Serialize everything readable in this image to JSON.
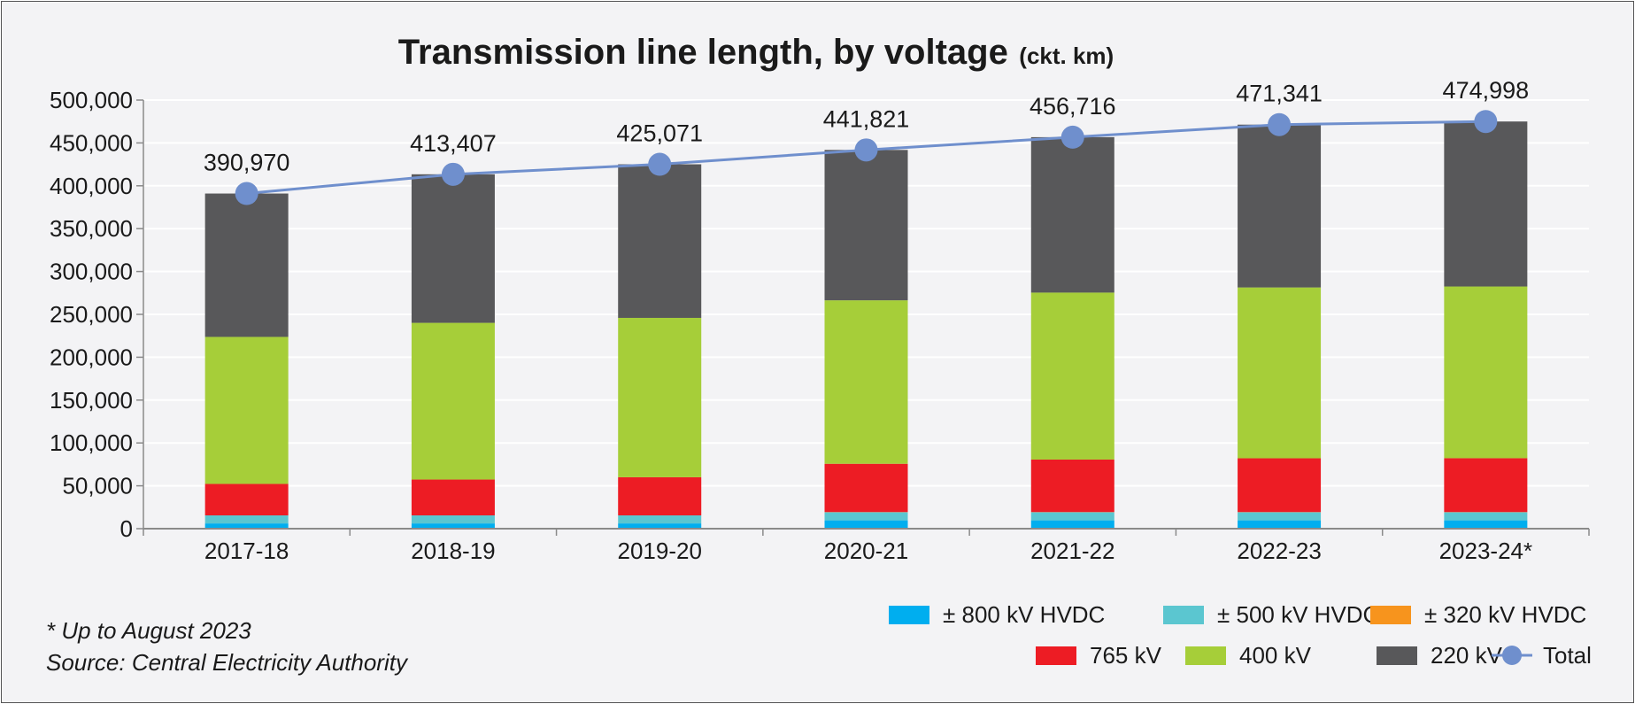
{
  "chart_data": {
    "type": "bar",
    "stacked": true,
    "title": "Transmission line length, by voltage",
    "title_unit": "(ckt. km)",
    "categories": [
      "2017-18",
      "2018-19",
      "2019-20",
      "2020-21",
      "2021-22",
      "2022-23",
      "2023-24*"
    ],
    "ylim": [
      0,
      500000
    ],
    "yticks": [
      0,
      50000,
      100000,
      150000,
      200000,
      250000,
      300000,
      350000,
      400000,
      450000,
      500000
    ],
    "ytick_labels": [
      "0",
      "50,000",
      "100,000",
      "150,000",
      "200,000",
      "250,000",
      "300,000",
      "350,000",
      "400,000",
      "450,000",
      "500,000"
    ],
    "grid": true,
    "series": [
      {
        "name": "± 800 kV HVDC",
        "color": "#00aeef",
        "values": [
          6100,
          6100,
          6100,
          9700,
          9700,
          9700,
          9700
        ]
      },
      {
        "name": "± 500 kV HVDC",
        "color": "#5bc6d0",
        "values": [
          9400,
          9400,
          9400,
          9400,
          9400,
          9400,
          9400
        ]
      },
      {
        "name": "± 320 kV HVDC",
        "color": "#f7941d",
        "values": [
          0,
          0,
          0,
          300,
          300,
          300,
          300
        ]
      },
      {
        "name": "765 kV",
        "color": "#ed1c24",
        "values": [
          36700,
          41800,
          44500,
          56300,
          61200,
          62700,
          62800
        ]
      },
      {
        "name": "400 kV",
        "color": "#a6ce39",
        "values": [
          171500,
          182800,
          185900,
          190700,
          194800,
          199300,
          200300
        ]
      },
      {
        "name": "220 kV",
        "color": "#58585a",
        "values": [
          167270,
          173307,
          179171,
          175421,
          181316,
          189941,
          192498
        ]
      }
    ],
    "line": {
      "name": "Total",
      "color": "#6f8fcd",
      "values": [
        390970,
        413407,
        425071,
        441821,
        456716,
        471341,
        474998
      ],
      "labels": [
        "390,970",
        "413,407",
        "425,071",
        "441,821",
        "456,716",
        "471,341",
        "474,998"
      ]
    },
    "legend_position": "bottom-right"
  },
  "notes": {
    "footnote": "* Up to August 2023",
    "source": "Source: Central Electricity Authority"
  }
}
